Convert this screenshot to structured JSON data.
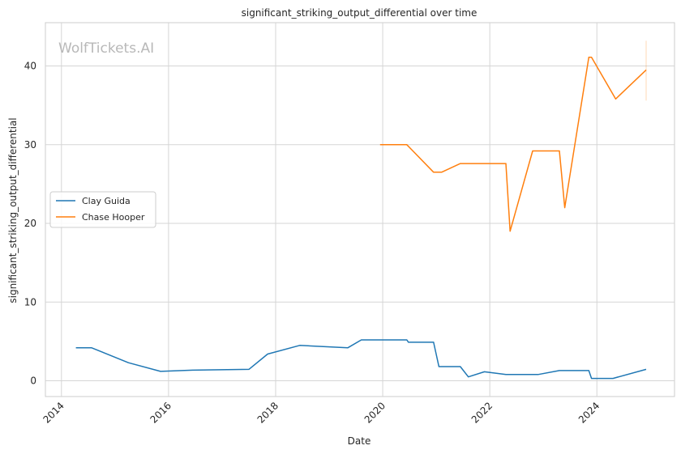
{
  "chart_data": {
    "type": "line",
    "title": "significant_striking_output_differential over time",
    "xlabel": "Date",
    "ylabel": "significant_striking_output_differential",
    "watermark": "WolfTickets.AI",
    "xlim": [
      2013.7,
      2025.45
    ],
    "ylim": [
      -2,
      45.5
    ],
    "x_ticks": [
      2014,
      2016,
      2018,
      2020,
      2022,
      2024
    ],
    "y_ticks": [
      0,
      10,
      20,
      30,
      40
    ],
    "grid": true,
    "legend_position": "center-left",
    "series": [
      {
        "name": "Clay Guida",
        "color": "#1f77b4",
        "x": [
          2014.27,
          2014.56,
          2015.25,
          2015.85,
          2016.45,
          2017.5,
          2017.85,
          2018.45,
          2019.35,
          2019.6,
          2020.45,
          2020.48,
          2020.95,
          2021.05,
          2021.45,
          2021.6,
          2021.9,
          2022.3,
          2022.9,
          2023.3,
          2023.85,
          2023.9,
          2024.3,
          2024.92
        ],
        "y": [
          4.2,
          4.2,
          2.3,
          1.2,
          1.35,
          1.45,
          3.4,
          4.5,
          4.2,
          5.2,
          5.2,
          4.9,
          4.9,
          1.8,
          1.8,
          0.5,
          1.15,
          0.8,
          0.8,
          1.3,
          1.3,
          0.3,
          0.3,
          1.45
        ]
      },
      {
        "name": "Chase Hooper",
        "color": "#ff7f0e",
        "x": [
          2019.95,
          2020.45,
          2020.95,
          2021.1,
          2021.45,
          2021.9,
          2022.3,
          2022.38,
          2022.8,
          2023.3,
          2023.4,
          2023.85,
          2023.9,
          2024.35,
          2024.92
        ],
        "y": [
          30.0,
          30.0,
          26.5,
          26.5,
          27.6,
          27.6,
          27.6,
          19.0,
          29.2,
          29.2,
          22.0,
          41.1,
          41.1,
          35.8,
          39.5
        ],
        "error_bar": {
          "x": 2024.92,
          "low": 35.6,
          "high": 43.2
        }
      }
    ]
  }
}
